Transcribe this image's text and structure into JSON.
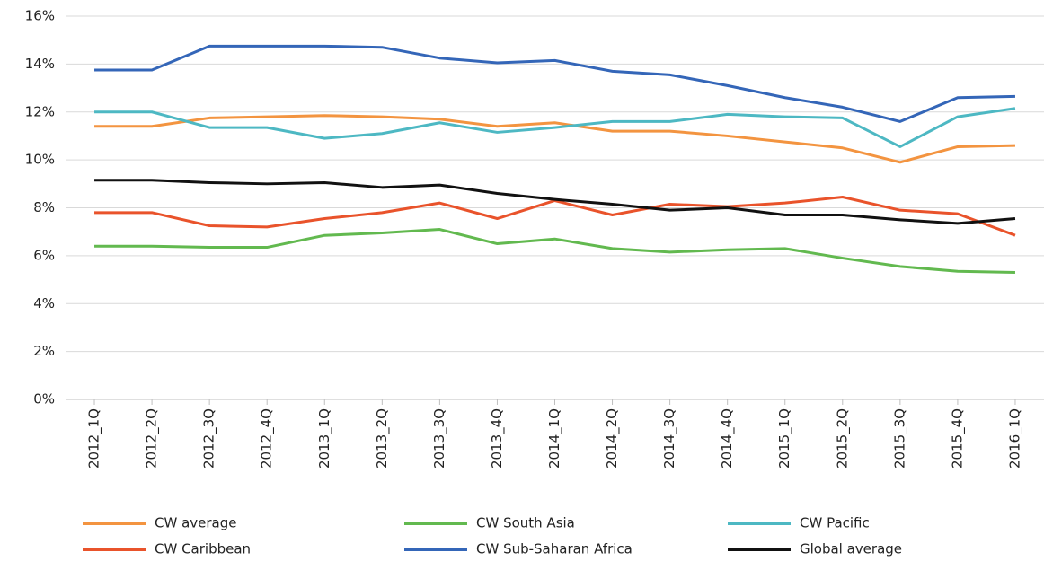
{
  "chart_data": {
    "type": "line",
    "categories": [
      "2012_1Q",
      "2012_2Q",
      "2012_3Q",
      "2012_4Q",
      "2013_1Q",
      "2013_2Q",
      "2013_3Q",
      "2013_4Q",
      "2014_1Q",
      "2014_2Q",
      "2014_3Q",
      "2014_4Q",
      "2015_1Q",
      "2015_2Q",
      "2015_3Q",
      "2015_4Q",
      "2016_1Q"
    ],
    "series": [
      {
        "name": "CW average",
        "color": "#f39440",
        "values": [
          11.4,
          11.4,
          11.75,
          11.8,
          11.85,
          11.8,
          11.7,
          11.4,
          11.55,
          11.2,
          11.2,
          11.0,
          10.75,
          10.5,
          9.9,
          10.55,
          10.6
        ]
      },
      {
        "name": "CW South Asia",
        "color": "#62b94f",
        "values": [
          6.4,
          6.4,
          6.35,
          6.35,
          6.85,
          6.95,
          7.1,
          6.5,
          6.7,
          6.3,
          6.15,
          6.25,
          6.3,
          5.9,
          5.55,
          5.35,
          5.3
        ]
      },
      {
        "name": "CW Pacific",
        "color": "#4db8c3",
        "values": [
          12.0,
          12.0,
          11.35,
          11.35,
          10.9,
          11.1,
          11.55,
          11.15,
          11.35,
          11.6,
          11.6,
          11.9,
          11.8,
          11.75,
          10.55,
          11.8,
          12.15
        ]
      },
      {
        "name": "CW Caribbean",
        "color": "#e9532b",
        "values": [
          7.8,
          7.8,
          7.25,
          7.2,
          7.55,
          7.8,
          8.2,
          7.55,
          8.3,
          7.7,
          8.15,
          8.05,
          8.2,
          8.45,
          7.9,
          7.75,
          6.85
        ]
      },
      {
        "name": "CW Sub-Saharan Africa",
        "color": "#3466b8",
        "values": [
          13.75,
          13.75,
          14.75,
          14.75,
          14.75,
          14.7,
          14.25,
          14.05,
          14.15,
          13.7,
          13.55,
          13.1,
          12.6,
          12.2,
          11.6,
          12.6,
          12.65
        ]
      },
      {
        "name": "Global average",
        "color": "#111111",
        "values": [
          9.15,
          9.15,
          9.05,
          9.0,
          9.05,
          8.85,
          8.95,
          8.6,
          8.35,
          8.15,
          7.9,
          8.0,
          7.7,
          7.7,
          7.5,
          7.35,
          7.55
        ]
      }
    ],
    "ylim": [
      0,
      16
    ],
    "yticks": [
      {
        "value": 0,
        "label": "0%"
      },
      {
        "value": 2,
        "label": "2%"
      },
      {
        "value": 4,
        "label": "4%"
      },
      {
        "value": 6,
        "label": "6%"
      },
      {
        "value": 8,
        "label": "8%"
      },
      {
        "value": 10,
        "label": "10%"
      },
      {
        "value": 12,
        "label": "12%"
      },
      {
        "value": 14,
        "label": "14%"
      },
      {
        "value": 16,
        "label": "16%"
      }
    ],
    "grid": true
  }
}
